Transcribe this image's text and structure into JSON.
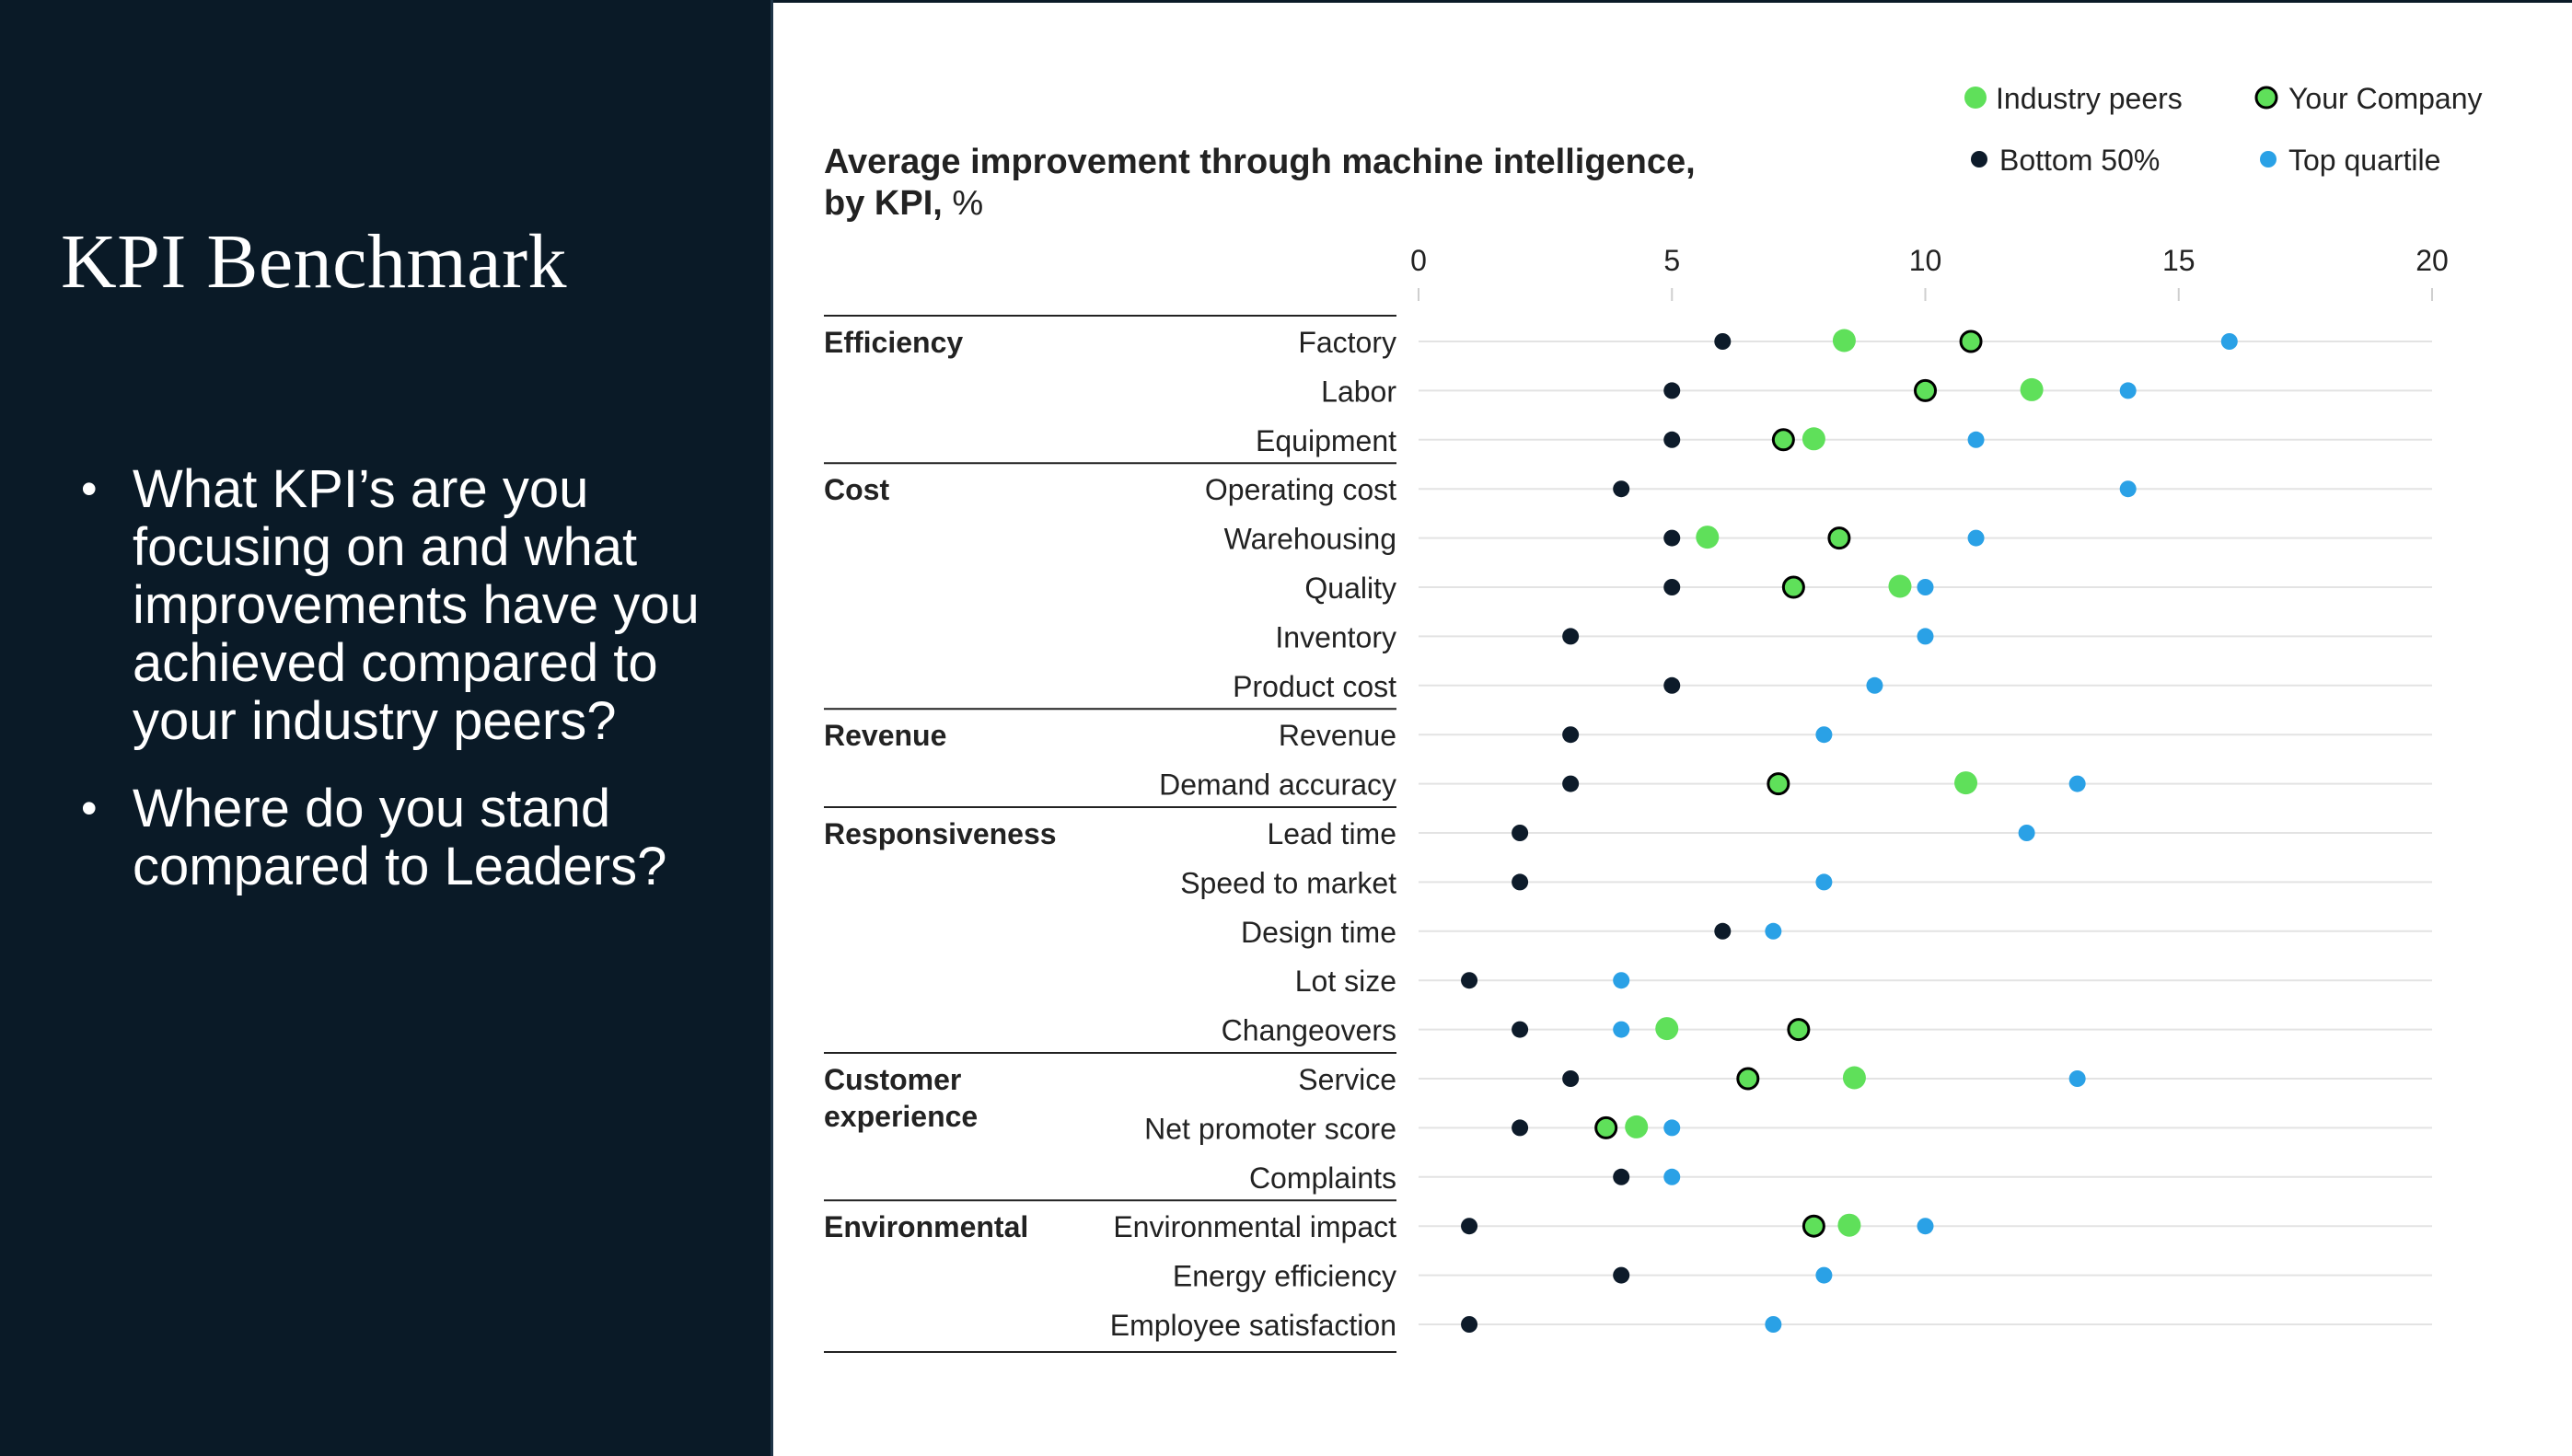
{
  "slide": {
    "title": "KPI Benchmark",
    "bullets": [
      "What KPI’s are you focusing on and what improvements have you achieved compared to your industry peers?",
      "Where do you stand compared to Leaders?"
    ]
  },
  "colors": {
    "panel_background": "#0a1a27",
    "industry_peers": "#5fe05a",
    "your_company": "#5fe05a",
    "bottom_50": "#0d1b2a",
    "top_quartile": "#2aa1e6"
  },
  "chart_data": {
    "type": "scatter",
    "title": "Average improvement through machine intelligence, by KPI,",
    "title_unit": "%",
    "xlim": [
      0,
      20
    ],
    "xticks": [
      "0",
      "5",
      "10",
      "15",
      "20"
    ],
    "legend": [
      {
        "key": "industry_peers",
        "label": "Industry peers"
      },
      {
        "key": "your_company",
        "label": "Your Company"
      },
      {
        "key": "bottom_50",
        "label": "Bottom 50%"
      },
      {
        "key": "top_quartile",
        "label": "Top quartile"
      }
    ],
    "groups": [
      {
        "name": "Efficiency",
        "rows": [
          {
            "label": "Factory",
            "bottom_50": 6,
            "industry_peers": 8.4,
            "your_company": 10.9,
            "top_quartile": 16
          },
          {
            "label": "Labor",
            "bottom_50": 5,
            "industry_peers": 12.1,
            "your_company": 10,
            "top_quartile": 14
          },
          {
            "label": "Equipment",
            "bottom_50": 5,
            "industry_peers": 7.8,
            "your_company": 7.2,
            "top_quartile": 11
          }
        ]
      },
      {
        "name": "Cost",
        "rows": [
          {
            "label": "Operating cost",
            "bottom_50": 4,
            "top_quartile": 14
          },
          {
            "label": "Warehousing",
            "bottom_50": 5,
            "industry_peers": 5.7,
            "your_company": 8.3,
            "top_quartile": 11
          },
          {
            "label": "Quality",
            "bottom_50": 5,
            "industry_peers": 9.5,
            "your_company": 7.4,
            "top_quartile": 10
          },
          {
            "label": "Inventory",
            "bottom_50": 3,
            "top_quartile": 10
          },
          {
            "label": "Product cost",
            "bottom_50": 5,
            "top_quartile": 9
          }
        ]
      },
      {
        "name": "Revenue",
        "rows": [
          {
            "label": "Revenue",
            "bottom_50": 3,
            "top_quartile": 8
          },
          {
            "label": "Demand accuracy",
            "bottom_50": 3,
            "industry_peers": 10.8,
            "your_company": 7.1,
            "top_quartile": 13
          }
        ]
      },
      {
        "name": "Responsiveness",
        "rows": [
          {
            "label": "Lead time",
            "bottom_50": 2,
            "top_quartile": 12
          },
          {
            "label": "Speed to market",
            "bottom_50": 2,
            "top_quartile": 8
          },
          {
            "label": "Design time",
            "bottom_50": 6,
            "top_quartile": 7
          },
          {
            "label": "Lot size",
            "bottom_50": 1,
            "top_quartile": 4
          },
          {
            "label": "Changeovers",
            "bottom_50": 2,
            "industry_peers": 4.9,
            "your_company": 7.5,
            "top_quartile": 4
          }
        ]
      },
      {
        "name": "Customer experience",
        "name_lines": [
          "Customer",
          "experience"
        ],
        "rows": [
          {
            "label": "Service",
            "bottom_50": 3,
            "industry_peers": 8.6,
            "your_company": 6.5,
            "top_quartile": 13
          },
          {
            "label": "Net promoter score",
            "bottom_50": 2,
            "industry_peers": 4.3,
            "your_company": 3.7,
            "top_quartile": 5
          },
          {
            "label": "Complaints",
            "bottom_50": 4,
            "top_quartile": 5
          }
        ]
      },
      {
        "name": "Environmental",
        "rows": [
          {
            "label": "Environmental impact",
            "bottom_50": 1,
            "industry_peers": 8.5,
            "your_company": 7.8,
            "top_quartile": 10
          },
          {
            "label": "Energy efficiency",
            "bottom_50": 4,
            "top_quartile": 8
          },
          {
            "label": "Employee satisfaction",
            "bottom_50": 1,
            "top_quartile": 7
          }
        ]
      }
    ]
  }
}
